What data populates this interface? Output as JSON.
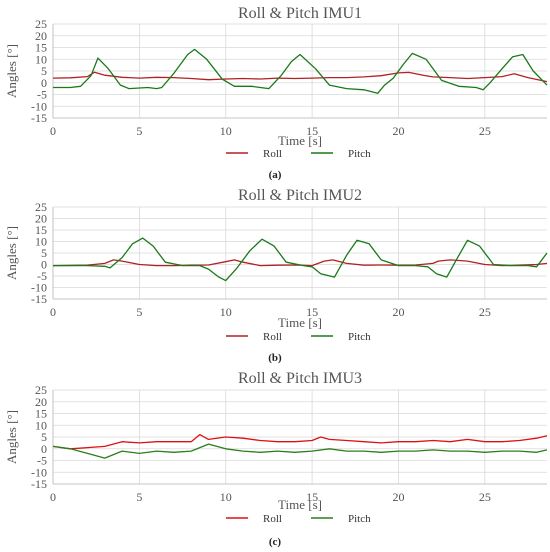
{
  "chart_data": [
    {
      "type": "line",
      "title": "Roll & Pitch IMU1",
      "xlabel": "Time [s]",
      "ylabel": "Angles [°]",
      "xlim": [
        0,
        28.6
      ],
      "ylim": [
        -15,
        25
      ],
      "xticks": [
        0,
        5,
        10,
        15,
        20,
        25
      ],
      "yticks": [
        -15,
        -10,
        -5,
        0,
        5,
        10,
        15,
        20,
        25
      ],
      "grid": true,
      "legend_position": "bottom",
      "caption": "(a)",
      "series": [
        {
          "name": "Roll",
          "color": "#b22222",
          "x": [
            0,
            1,
            2,
            2.4,
            3,
            4,
            5,
            6,
            7,
            8,
            9,
            10,
            11,
            12,
            13,
            14,
            15,
            16,
            17,
            18,
            19,
            20,
            20.6,
            21.5,
            22,
            23,
            24,
            25,
            26,
            26.7,
            27.5,
            28.6
          ],
          "y": [
            2,
            2.1,
            2.6,
            4.5,
            3.2,
            2.3,
            2,
            2.3,
            2.2,
            1.8,
            1.3,
            1.6,
            1.8,
            1.6,
            2,
            1.8,
            2,
            2.2,
            2.2,
            2.5,
            3,
            4.2,
            4.4,
            3.1,
            2.5,
            2.2,
            1.8,
            2.2,
            2.6,
            3.8,
            2.2,
            0.5
          ]
        },
        {
          "name": "Pitch",
          "color": "#1a7a1a",
          "x": [
            0,
            1,
            1.6,
            2.2,
            2.6,
            3.2,
            3.9,
            4.4,
            5.5,
            6,
            6.3,
            7,
            7.8,
            8.2,
            8.9,
            9.8,
            10.5,
            11.5,
            12,
            12.5,
            13.2,
            13.8,
            14.3,
            15.2,
            16,
            17,
            18,
            18.8,
            19.2,
            19.7,
            20.3,
            20.8,
            21.6,
            22.5,
            23.5,
            24.5,
            24.9,
            25.3,
            26,
            26.6,
            27.2,
            27.8,
            28.6
          ],
          "y": [
            -2,
            -2,
            -1.5,
            3,
            10.5,
            6,
            -1,
            -2.5,
            -2,
            -2.5,
            -2,
            4,
            12,
            14.2,
            10,
            1.5,
            -1.5,
            -1.5,
            -2,
            -2.5,
            3,
            9,
            12,
            6,
            -1,
            -2.5,
            -3,
            -4.5,
            -1,
            2,
            8,
            12.5,
            10,
            1,
            -1.5,
            -2,
            -3,
            0,
            6,
            11,
            12,
            5,
            -1
          ]
        }
      ]
    },
    {
      "type": "line",
      "title": "Roll & Pitch IMU2",
      "xlabel": "Time [s]",
      "ylabel": "Angles [°]",
      "xlim": [
        0,
        28.6
      ],
      "ylim": [
        -15,
        25
      ],
      "xticks": [
        0,
        5,
        10,
        15,
        20,
        25
      ],
      "yticks": [
        -15,
        -10,
        -5,
        0,
        5,
        10,
        15,
        20,
        25
      ],
      "grid": true,
      "legend_position": "bottom",
      "caption": "(b)",
      "series": [
        {
          "name": "Roll",
          "color": "#b22222",
          "x": [
            0,
            2,
            3,
            3.5,
            4,
            5,
            6,
            7,
            8,
            9,
            10,
            10.5,
            11,
            12,
            13,
            14,
            15,
            15.7,
            16.2,
            17,
            18,
            19,
            20,
            21,
            22,
            22.3,
            23,
            24,
            25,
            26,
            27,
            28,
            28.6
          ],
          "y": [
            -0.5,
            -0.3,
            0.5,
            2,
            1.5,
            0,
            -0.5,
            -0.5,
            -0.3,
            -0.2,
            1.2,
            2,
            1,
            -0.5,
            -0.3,
            -0.2,
            -0.5,
            1.5,
            2,
            0.5,
            -0.3,
            -0.2,
            -0.3,
            -0.2,
            0.5,
            1.5,
            2,
            1.5,
            0,
            -0.5,
            -0.3,
            0,
            0.5
          ]
        },
        {
          "name": "Pitch",
          "color": "#1a7a1a",
          "x": [
            0,
            2,
            3,
            3.3,
            4,
            4.6,
            5.2,
            5.8,
            6.5,
            7.5,
            8.5,
            9,
            9.6,
            10,
            10.6,
            11.4,
            12.1,
            12.8,
            13.5,
            14.5,
            15,
            15.5,
            16.3,
            17,
            17.6,
            18.3,
            19,
            20,
            21,
            21.7,
            22.2,
            22.8,
            23.5,
            24,
            24.7,
            25.5,
            26.5,
            27.5,
            28,
            28.6
          ],
          "y": [
            -0.5,
            -0.5,
            -0.8,
            -1.5,
            3,
            9,
            11.5,
            8,
            1,
            -0.5,
            -0.5,
            -2,
            -5.5,
            -7,
            -2,
            6,
            11,
            8,
            1,
            -0.5,
            -1,
            -4,
            -5.5,
            4,
            10.5,
            9,
            2,
            -0.5,
            -0.5,
            -1,
            -4,
            -5.5,
            4,
            10.5,
            8,
            0,
            -0.5,
            -0.5,
            -1,
            5
          ]
        }
      ]
    },
    {
      "type": "line",
      "title": "Roll & Pitch IMU3",
      "xlabel": "Time [s]",
      "ylabel": "Angles [°]",
      "xlim": [
        0,
        28.6
      ],
      "ylim": [
        -15,
        25
      ],
      "xticks": [
        0,
        5,
        10,
        15,
        20,
        25
      ],
      "yticks": [
        -15,
        -10,
        -5,
        0,
        5,
        10,
        15,
        20,
        25
      ],
      "grid": true,
      "legend_position": "bottom",
      "caption": "(c)",
      "series": [
        {
          "name": "Roll",
          "color": "#dd1111",
          "x": [
            0,
            1,
            2,
            3,
            4,
            5,
            6,
            7,
            8,
            8.5,
            9,
            10,
            11,
            12,
            13,
            14,
            15,
            15.5,
            16,
            17,
            18,
            19,
            20,
            21,
            22,
            23,
            24,
            25,
            26,
            27,
            28,
            28.6
          ],
          "y": [
            1,
            0,
            0.5,
            1,
            3,
            2.5,
            3,
            3,
            3,
            6,
            4,
            5,
            4.5,
            3.5,
            3,
            3,
            3.5,
            5,
            4,
            3.5,
            3,
            2.5,
            3,
            3,
            3.5,
            3,
            4,
            3,
            3,
            3.5,
            4.5,
            5.5
          ]
        },
        {
          "name": "Pitch",
          "color": "#2a7f1a",
          "x": [
            0,
            1,
            2,
            3,
            4,
            5,
            6,
            7,
            8,
            9,
            10,
            11,
            12,
            13,
            14,
            15,
            16,
            17,
            18,
            19,
            20,
            21,
            22,
            23,
            24,
            25,
            26,
            27,
            28,
            28.6
          ],
          "y": [
            1,
            0,
            -2,
            -4,
            -1,
            -2,
            -1,
            -1.5,
            -1,
            2,
            0,
            -1,
            -1.5,
            -1,
            -1.5,
            -1,
            0,
            -1,
            -1,
            -1.5,
            -1,
            -1,
            -0.5,
            -1,
            -1,
            -1.5,
            -1,
            -1,
            -1.5,
            -0.5
          ]
        }
      ]
    }
  ]
}
